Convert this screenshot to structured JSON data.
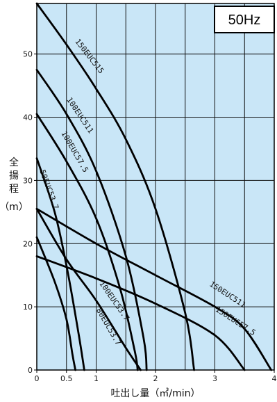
{
  "chart_data": {
    "type": "line",
    "badge": "50Hz",
    "xlabel": "吐出し量（㎥/min）",
    "ylabel_chars": [
      "全",
      "揚",
      "程"
    ],
    "ylabel_unit": "（m）",
    "xlim": [
      0,
      4
    ],
    "ylim": [
      0,
      58
    ],
    "x_ticks": [
      {
        "value": 0,
        "label": "0"
      },
      {
        "value": 0.5,
        "label": "0.5"
      },
      {
        "value": 1,
        "label": "1"
      },
      {
        "value": 2,
        "label": "2"
      },
      {
        "value": 3,
        "label": "3"
      },
      {
        "value": 4,
        "label": "4"
      }
    ],
    "y_ticks": [
      {
        "value": 0,
        "label": "0"
      },
      {
        "value": 10,
        "label": "10"
      },
      {
        "value": 20,
        "label": "20"
      },
      {
        "value": 30,
        "label": "30"
      },
      {
        "value": 40,
        "label": "40"
      },
      {
        "value": 50,
        "label": "50"
      }
    ],
    "grid_x": [
      0.5,
      1,
      1.5,
      2,
      2.5,
      3,
      3.5
    ],
    "grid_y": [
      10,
      20,
      30,
      40,
      50
    ],
    "series": [
      {
        "name": "150EUC515",
        "x": [
          0,
          0.5,
          1,
          1.5,
          2,
          2.5,
          2.65
        ],
        "y": [
          58,
          51.5,
          44.5,
          36.5,
          25.5,
          9,
          0
        ],
        "label_pos": [
          0.64,
          52
        ],
        "label_angle": 52
      },
      {
        "name": "100EUC511",
        "x": [
          0,
          0.5,
          1,
          1.5,
          1.8,
          1.85
        ],
        "y": [
          47.5,
          40.5,
          31.5,
          18,
          5,
          0
        ],
        "label_pos": [
          0.5,
          42.8
        ],
        "label_angle": 56
      },
      {
        "name": "100EUC57.5",
        "x": [
          0,
          0.5,
          1,
          1.4,
          1.65,
          1.7
        ],
        "y": [
          40.5,
          33,
          24,
          13,
          3,
          0
        ],
        "label_pos": [
          0.41,
          37.5
        ],
        "label_angle": 60
      },
      {
        "name": "50EUC53.7",
        "x": [
          0,
          0.3,
          0.5,
          0.7,
          0.8
        ],
        "y": [
          33.5,
          25,
          16.5,
          6,
          0
        ],
        "label_pos": [
          0.05,
          31.5
        ],
        "label_angle": 70
      },
      {
        "name": "100EUC53.7",
        "x": [
          0,
          0.5,
          1,
          1.5,
          1.75
        ],
        "y": [
          25.5,
          17.5,
          11,
          3.5,
          0
        ],
        "label_pos": [
          1.05,
          13.7
        ],
        "label_angle": 55
      },
      {
        "name": "80EUC53.7",
        "x": [
          0,
          0.3,
          0.5,
          0.6,
          0.65
        ],
        "y": [
          21,
          14,
          8,
          2.5,
          0
        ],
        "label_pos": [
          1.0,
          9.5
        ],
        "label_angle": 60
      },
      {
        "name": "150EUC511",
        "x": [
          0,
          1,
          2,
          3,
          3.5,
          3.95
        ],
        "y": [
          25.5,
          20,
          15,
          10,
          6.5,
          0
        ],
        "label_pos": [
          2.9,
          13.4
        ],
        "label_angle": 33
      },
      {
        "name": "150EUC57.5",
        "x": [
          0,
          1,
          2,
          3,
          3.5
        ],
        "y": [
          18,
          14.5,
          10.5,
          5.5,
          0
        ],
        "label_pos": [
          3.0,
          9.4
        ],
        "label_angle": 33
      }
    ]
  }
}
